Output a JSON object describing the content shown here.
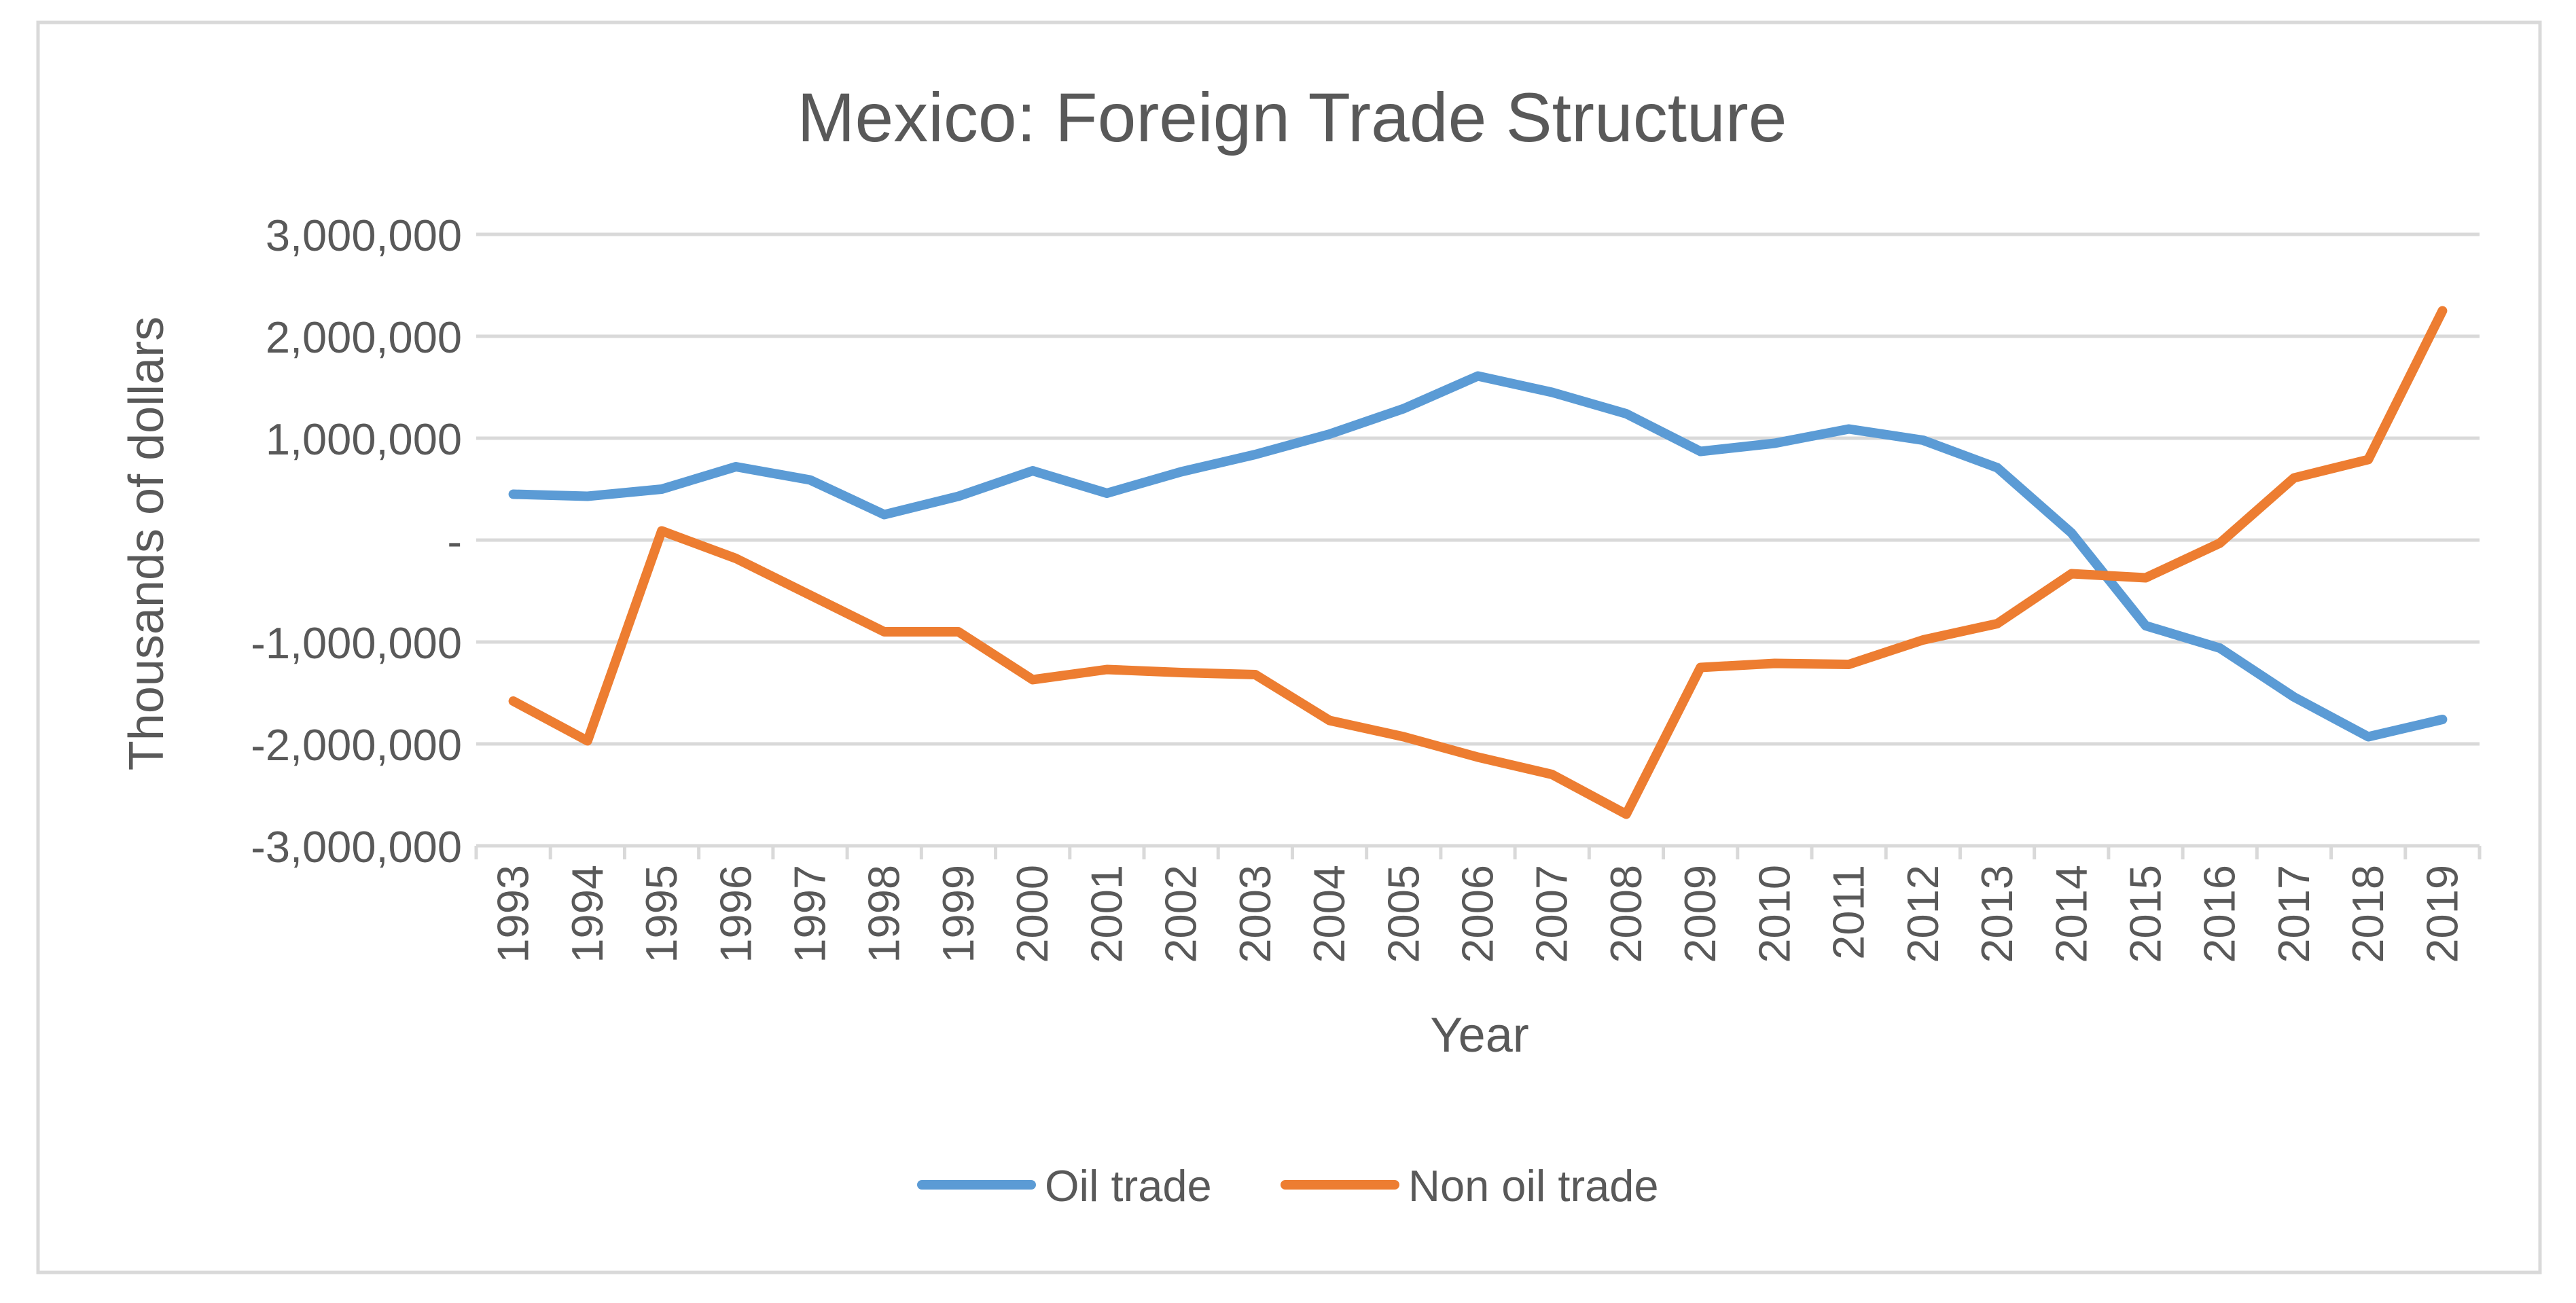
{
  "chart_data": {
    "type": "line",
    "title": "Mexico: Foreign Trade Structure",
    "xlabel": "Year",
    "ylabel": "Thousands of dollars",
    "categories": [
      "1993",
      "1994",
      "1995",
      "1996",
      "1997",
      "1998",
      "1999",
      "2000",
      "2001",
      "2002",
      "2003",
      "2004",
      "2005",
      "2006",
      "2007",
      "2008",
      "2009",
      "2010",
      "2011",
      "2012",
      "2013",
      "2014",
      "2015",
      "2016",
      "2017",
      "2018",
      "2019"
    ],
    "ylim": [
      -3000000,
      3000000
    ],
    "yticks": [
      3000000,
      2000000,
      1000000,
      0,
      -1000000,
      -2000000,
      -3000000
    ],
    "ytick_labels": [
      "3,000,000",
      "2,000,000",
      "1,000,000",
      "-",
      "-1,000,000",
      "-2,000,000",
      "-3,000,000"
    ],
    "grid": true,
    "legend_position": "bottom",
    "series": [
      {
        "name": "Oil trade",
        "color": "#5b9bd5",
        "values": [
          450000,
          430000,
          500000,
          720000,
          590000,
          250000,
          430000,
          680000,
          460000,
          670000,
          840000,
          1040000,
          1290000,
          1610000,
          1450000,
          1240000,
          870000,
          950000,
          1090000,
          980000,
          710000,
          70000,
          -840000,
          -1060000,
          -1540000,
          -1930000,
          -1760000
        ]
      },
      {
        "name": "Non oil trade",
        "color": "#ed7d31",
        "values": [
          -1580000,
          -1970000,
          90000,
          -180000,
          -540000,
          -900000,
          -900000,
          -1370000,
          -1270000,
          -1300000,
          -1320000,
          -1770000,
          -1930000,
          -2130000,
          -2300000,
          -2690000,
          -1250000,
          -1210000,
          -1220000,
          -980000,
          -820000,
          -330000,
          -370000,
          -30000,
          610000,
          790000,
          2250000
        ]
      }
    ]
  }
}
